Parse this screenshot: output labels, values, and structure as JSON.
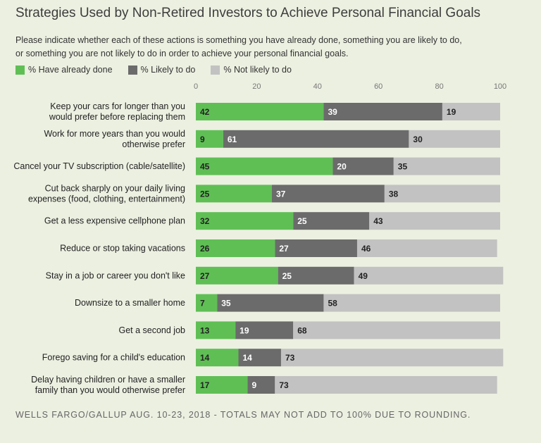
{
  "title": "Strategies Used by Non-Retired Investors to Achieve Personal Financial Goals",
  "subtitle": [
    "Please indicate whether each of these actions is something you have already done, something you are likely to do,",
    "or something you are not likely to do in order to achieve your personal financial goals."
  ],
  "footer": "WELLS FARGO/GALLUP AUG. 10-23, 2018 - TOTALS MAY NOT ADD TO 100% DUE TO ROUNDING.",
  "colors": {
    "background": "#ecf0e1",
    "already_done": "#5fbf55",
    "likely": "#6b6b6b",
    "not_likely": "#c2c2c2"
  },
  "chart_data": {
    "type": "bar",
    "orientation": "horizontal",
    "stacked": true,
    "xlim": [
      0,
      100
    ],
    "xticks": [
      0,
      20,
      40,
      60,
      80,
      100
    ],
    "legend_position": "top-left",
    "grid": false,
    "categories": [
      [
        "Keep your cars for longer than you",
        "would prefer before replacing them"
      ],
      [
        "Work for more years than you would",
        "otherwise prefer"
      ],
      [
        "Cancel your TV subscription (cable/satellite)"
      ],
      [
        "Cut back sharply on your daily living",
        "expenses (food, clothing, entertainment)"
      ],
      [
        "Get a less expensive cellphone plan"
      ],
      [
        "Reduce or stop taking vacations"
      ],
      [
        "Stay in a job or career you don't like"
      ],
      [
        "Downsize to a smaller home"
      ],
      [
        "Get a second job"
      ],
      [
        "Forego saving for a child's education"
      ],
      [
        "Delay having children or have a smaller",
        "family than you would otherwise prefer"
      ]
    ],
    "series": [
      {
        "name": "% Have already done",
        "color": "#5fbf55",
        "label_color": "#222222",
        "values": [
          42,
          9,
          45,
          25,
          32,
          26,
          27,
          7,
          13,
          14,
          17
        ]
      },
      {
        "name": "% Likely to do",
        "color": "#6b6b6b",
        "label_color": "#ffffff",
        "values": [
          39,
          61,
          20,
          37,
          25,
          27,
          25,
          35,
          19,
          14,
          9
        ]
      },
      {
        "name": "% Not likely to do",
        "color": "#c2c2c2",
        "label_color": "#222222",
        "values": [
          19,
          30,
          35,
          38,
          43,
          46,
          49,
          58,
          68,
          73,
          73
        ]
      }
    ]
  }
}
